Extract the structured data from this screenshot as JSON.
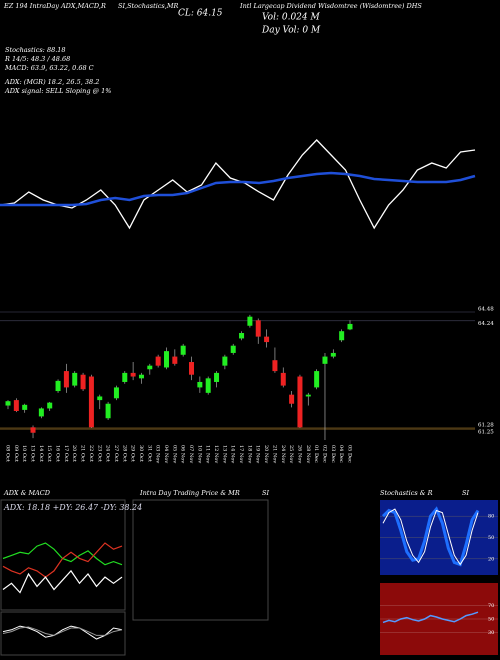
{
  "header": {
    "studies": "EZ 194 IntraDay ADX,MACD,R",
    "studies2": "SI,Stochastics,MR",
    "close": "CL: 64.15",
    "name": "Intl Largecap Dividend Wisdomtree (Wisdomtree) DHS",
    "volume": "Vol: 0.024 M",
    "day_volume": "Day Vol: 0 M"
  },
  "info": [
    "Stochastics: 88.18",
    "R 14/5: 48.3 / 48.68",
    "MACD: 63.9, 63.22, 0.68 C",
    "ADX: (MGR) 18.2, 26.5, 38.2",
    "ADX signal: SELL Sloping @ 1%"
  ],
  "chart_data": [
    {
      "type": "line",
      "ylim": [
        0,
        100
      ],
      "series": [
        {
          "color": "#ffffff",
          "values": [
            35,
            37,
            48,
            40,
            35,
            32,
            40,
            50,
            35,
            12,
            40,
            50,
            60,
            48,
            55,
            77,
            62,
            57,
            48,
            40,
            65,
            85,
            100,
            85,
            70,
            40,
            12,
            35,
            50,
            70,
            77,
            72,
            88,
            90
          ]
        },
        {
          "color": "#1f4fd8",
          "values": [
            35,
            35,
            35,
            35,
            35,
            35,
            36,
            40,
            42,
            40,
            44,
            45,
            45,
            47,
            52,
            57,
            58,
            58,
            57,
            59,
            62,
            64,
            66,
            67,
            66,
            64,
            61,
            60,
            59,
            58,
            58,
            58,
            60,
            64
          ]
        }
      ]
    },
    {
      "type": "candlestick",
      "ylim": [
        60.95,
        64.81
      ],
      "levels": [
        64.48,
        64.24,
        61.28,
        61.25
      ],
      "categories": [
        "08 Oct",
        "09 Oct",
        "10 Oct",
        "13 Oct",
        "14 Oct",
        "15 Oct",
        "16 Oct",
        "17 Oct",
        "20 Oct",
        "21 Oct",
        "22 Oct",
        "23 Oct",
        "24 Oct",
        "27 Oct",
        "28 Oct",
        "29 Oct",
        "30 Oct",
        "31 Oct",
        "03 Nov",
        "04 Nov",
        "05 Nov",
        "06 Nov",
        "07 Nov",
        "10 Nov",
        "11 Nov",
        "12 Nov",
        "13 Nov",
        "14 Nov",
        "17 Nov",
        "18 Nov",
        "19 Nov",
        "20 Nov",
        "21 Nov",
        "24 Nov",
        "25 Nov",
        "26 Nov",
        "28 Nov",
        "01 Dec",
        "02 Dec",
        "03 Dec",
        "04 Dec",
        "05 Dec"
      ],
      "open": [
        61.9,
        62.05,
        61.78,
        61.3,
        61.6,
        61.82,
        62.3,
        62.85,
        62.45,
        62.75,
        62.7,
        62.05,
        61.55,
        62.1,
        62.55,
        62.8,
        62.65,
        62.9,
        63.25,
        62.95,
        63.25,
        63.3,
        63.1,
        62.4,
        62.25,
        62.55,
        63.0,
        63.35,
        63.75,
        64.1,
        64.25,
        63.8,
        63.15,
        62.8,
        62.2,
        62.7,
        62.15,
        62.4,
        63.05,
        63.25,
        63.7,
        64.0
      ],
      "high": [
        62.05,
        62.1,
        61.95,
        61.35,
        61.85,
        62.0,
        62.62,
        63.05,
        62.85,
        62.8,
        62.75,
        62.2,
        62.0,
        62.45,
        62.85,
        63.1,
        62.8,
        63.05,
        63.3,
        63.5,
        63.45,
        63.6,
        63.25,
        62.7,
        62.7,
        62.85,
        63.3,
        63.6,
        63.95,
        64.4,
        64.3,
        64.0,
        63.5,
        62.95,
        62.3,
        62.75,
        62.25,
        62.9,
        63.35,
        63.45,
        64.0,
        64.25
      ],
      "low": [
        61.8,
        61.72,
        61.7,
        61.0,
        61.55,
        61.75,
        62.25,
        62.25,
        62.4,
        62.3,
        61.28,
        61.8,
        61.5,
        62.05,
        62.5,
        62.6,
        62.5,
        62.75,
        62.95,
        62.9,
        63.0,
        63.25,
        62.6,
        62.25,
        62.2,
        62.4,
        62.9,
        63.3,
        63.7,
        64.05,
        63.6,
        63.5,
        62.8,
        62.4,
        61.85,
        61.28,
        61.9,
        62.35,
        60.95,
        63.2,
        63.65,
        63.98
      ],
      "close": [
        62.02,
        61.75,
        61.92,
        61.15,
        61.82,
        61.98,
        62.58,
        62.4,
        62.8,
        62.35,
        61.3,
        62.15,
        61.95,
        62.4,
        62.8,
        62.7,
        62.75,
        63.0,
        63.0,
        63.4,
        63.05,
        63.55,
        62.75,
        62.55,
        62.65,
        62.8,
        63.25,
        63.55,
        63.9,
        64.35,
        63.8,
        63.65,
        62.85,
        62.45,
        61.95,
        61.3,
        62.2,
        62.85,
        63.25,
        63.35,
        63.95,
        64.15
      ]
    }
  ],
  "panels": {
    "adx": {
      "title": "ADX & MACD",
      "label": "ADX: 18.18 +DY: 26.47 -DY: 38.24",
      "ylim": [
        0,
        60
      ],
      "series": [
        {
          "color": "#22dd22",
          "values": [
            30,
            32,
            34,
            33,
            38,
            40,
            36,
            30,
            28,
            32,
            35,
            30,
            26,
            28,
            26
          ]
        },
        {
          "color": "#dd3322",
          "values": [
            25,
            22,
            20,
            24,
            22,
            18,
            22,
            30,
            34,
            30,
            28,
            34,
            40,
            36,
            38
          ]
        },
        {
          "color": "#ffffff",
          "values": [
            10,
            14,
            8,
            20,
            12,
            18,
            10,
            16,
            22,
            14,
            20,
            12,
            18,
            14,
            18
          ]
        }
      ],
      "macd": {
        "ylim": [
          -1,
          1
        ],
        "series": [
          {
            "color": "#ffffff",
            "values": [
              0.1,
              0.2,
              0.4,
              0.3,
              0.1,
              -0.2,
              -0.1,
              0.2,
              0.4,
              0.3,
              0.0,
              -0.3,
              -0.1,
              0.3,
              0.2
            ]
          },
          {
            "color": "#999999",
            "values": [
              0.0,
              0.1,
              0.3,
              0.35,
              0.2,
              0.0,
              -0.1,
              0.1,
              0.3,
              0.3,
              0.1,
              -0.1,
              -0.1,
              0.1,
              0.2
            ]
          }
        ]
      }
    },
    "intraday": {
      "title": "Intra Day Trading Price & MR",
      "si": "SI"
    },
    "stoch": {
      "title": "Stochastics & R",
      "si": "SI",
      "ylim": [
        0,
        100
      ],
      "yticks": [
        80,
        50,
        20
      ],
      "series": [
        {
          "color": "#1e6fff",
          "values": [
            80,
            88,
            85,
            60,
            30,
            18,
            20,
            45,
            80,
            90,
            70,
            35,
            15,
            12,
            40,
            75,
            88
          ]
        },
        {
          "color": "#ffffff",
          "values": [
            70,
            85,
            90,
            75,
            45,
            25,
            15,
            30,
            65,
            88,
            85,
            55,
            25,
            12,
            25,
            60,
            85
          ]
        }
      ],
      "rsi": {
        "ylim": [
          0,
          100
        ],
        "yticks": [
          70,
          50,
          30
        ],
        "values": [
          45,
          48,
          46,
          50,
          52,
          49,
          47,
          50,
          55,
          53,
          50,
          48,
          46,
          50,
          55,
          57,
          60
        ]
      }
    }
  }
}
